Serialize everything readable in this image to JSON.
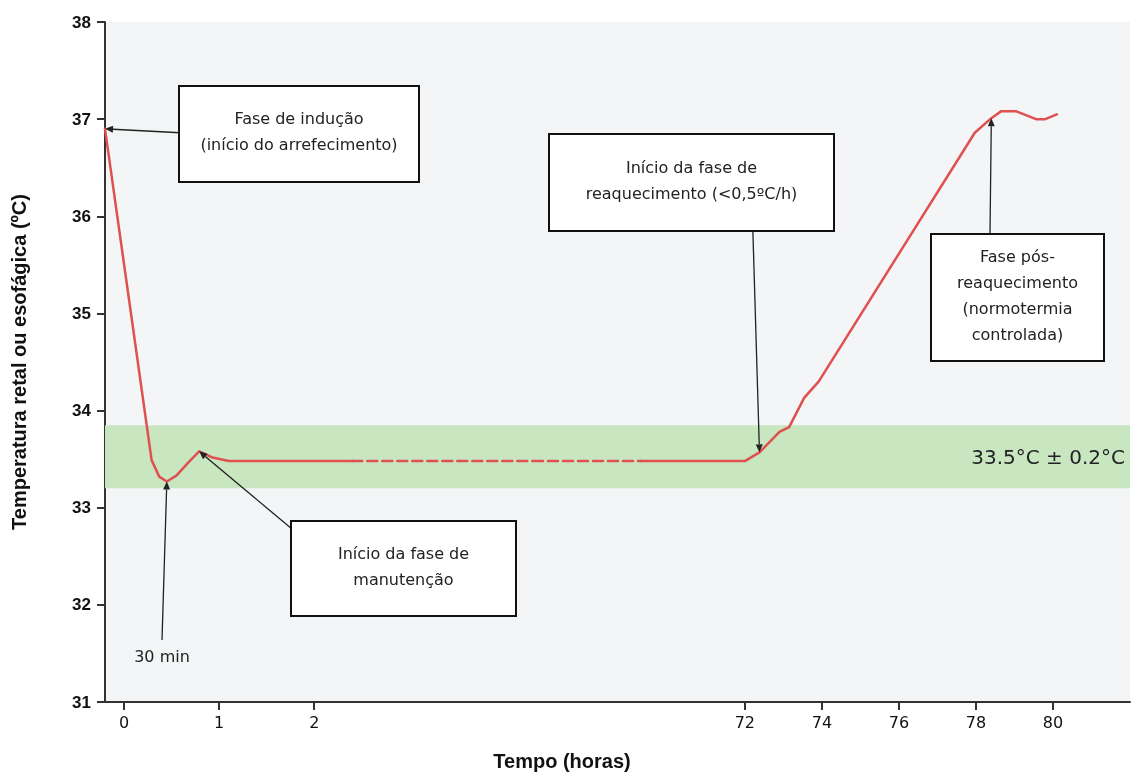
{
  "chart_data": [
    {
      "type": "line",
      "ylabel": "Temperatura retal ou esofágica (ºC)",
      "xlim": [
        -0.2,
        4.3
      ],
      "xticks": [
        0,
        1,
        2
      ],
      "ylim": [
        31,
        38
      ],
      "yticks": [
        31,
        32,
        33,
        34,
        35,
        36,
        37,
        38
      ],
      "grid": false,
      "marker": "none",
      "series": [
        {
          "color": "#e0504f",
          "line_style": "solid",
          "x": [
            -0.2,
            0.29,
            0.37,
            0.45,
            0.55,
            0.68,
            0.79,
            0.92,
            1.1,
            2.4
          ],
          "values": [
            36.9,
            33.49,
            33.32,
            33.27,
            33.33,
            33.47,
            33.58,
            33.52,
            33.48,
            33.48
          ]
        },
        {
          "color": "#e0504f",
          "line_style": "dashed",
          "x": [
            2.4,
            4.3
          ],
          "values": [
            33.48,
            33.48
          ]
        }
      ],
      "bands": [
        {
          "axis": "y",
          "from": 33.2,
          "to": 33.85,
          "color": "#c8e6c0"
        }
      ],
      "annotations": [
        {
          "text": "Fase de indução\n(início do arrefecimento)",
          "x": -0.2,
          "y": 36.9
        },
        {
          "text": "Início da fase de\nmanutenção",
          "x": 0.79,
          "y": 33.58
        },
        {
          "text": "30 min",
          "x": 0.45,
          "y": 33.27
        }
      ]
    },
    {
      "type": "line",
      "xlabel": "Tempo (horas)",
      "xlim": [
        66.5,
        82
      ],
      "xticks": [
        72,
        74,
        76,
        78,
        80
      ],
      "ylim": [
        31,
        38
      ],
      "yticks": [
        31,
        32,
        33,
        34,
        35,
        36,
        37,
        38
      ],
      "grid": false,
      "marker": "none",
      "tick_labels": "x",
      "series": [
        {
          "color": "#e0504f",
          "line_style": "dashed",
          "x": [
            66.5,
            69.3
          ],
          "values": [
            33.48,
            33.48
          ]
        },
        {
          "color": "#e0504f",
          "line_style": "solid",
          "x": [
            69.3,
            72,
            72.38,
            72.9,
            73.15,
            73.54,
            73.92,
            77.97,
            78.4,
            78.65,
            79.05,
            79.56,
            79.8,
            80.1
          ],
          "values": [
            33.48,
            33.48,
            33.57,
            33.78,
            33.83,
            34.13,
            34.3,
            36.86,
            37.01,
            37.08,
            37.08,
            37.0,
            37.0,
            37.05
          ]
        }
      ],
      "bands": [
        {
          "axis": "y",
          "from": 33.2,
          "to": 33.85,
          "color": "#c8e6c0",
          "label": "33.5°C ± 0.2°C"
        }
      ],
      "annotations": [
        {
          "text": "Início da fase de\nreaquecimento (<0,5ºC/h)",
          "x": 72.38,
          "y": 33.57
        },
        {
          "text": "Fase pós-\nreaquecimento\n(normotermia\ncontrolada)",
          "x": 78.4,
          "y": 37.01
        }
      ]
    }
  ]
}
